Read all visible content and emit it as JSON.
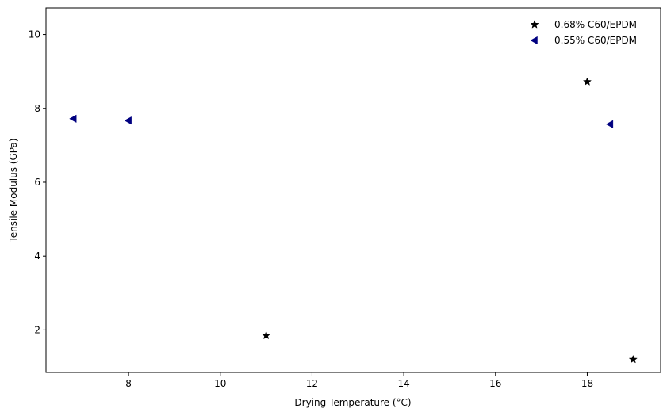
{
  "chart_data": {
    "type": "scatter",
    "title": "",
    "xlabel": "Drying Temperature (°C)",
    "ylabel": "Tensile Modulus (GPa)",
    "xlim": [
      6.2,
      19.6
    ],
    "ylim": [
      0.85,
      10.72
    ],
    "xticks": [
      8,
      10,
      12,
      14,
      16,
      18
    ],
    "yticks": [
      2,
      4,
      6,
      8,
      10
    ],
    "grid": false,
    "legend_position": "top-right",
    "series": [
      {
        "name": "0.68% C60/EPDM",
        "marker": "star",
        "color": "#000000",
        "points": [
          {
            "x": 11.0,
            "y": 1.85
          },
          {
            "x": 18.0,
            "y": 8.72
          },
          {
            "x": 19.0,
            "y": 1.2
          }
        ]
      },
      {
        "name": "0.55% C60/EPDM",
        "marker": "triangle-left",
        "color": "#000080",
        "points": [
          {
            "x": 6.8,
            "y": 7.72
          },
          {
            "x": 8.0,
            "y": 7.67
          },
          {
            "x": 18.5,
            "y": 7.57
          }
        ]
      }
    ]
  }
}
